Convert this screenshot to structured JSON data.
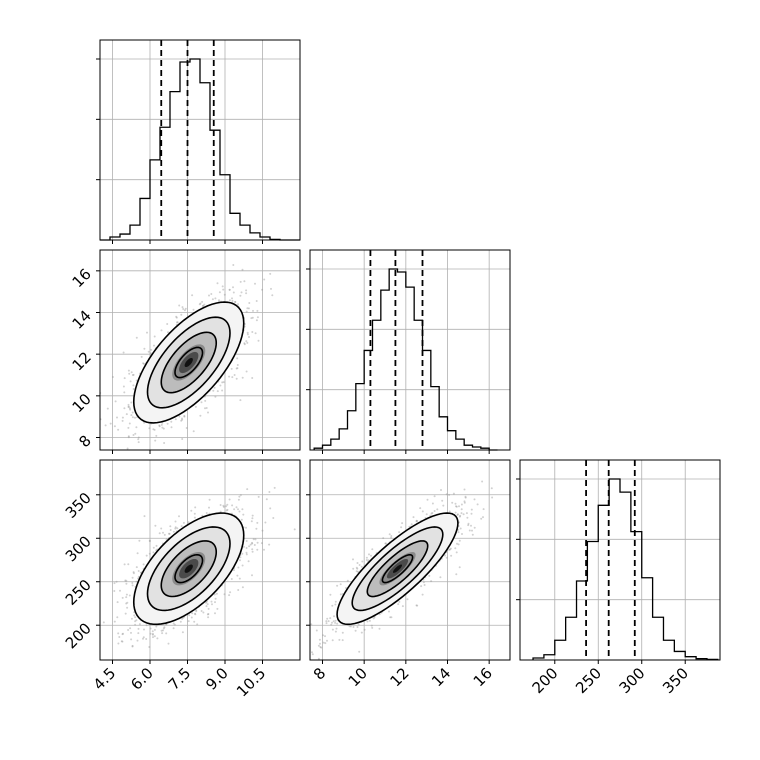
{
  "chart_data": {
    "type": "corner",
    "parameters": [
      {
        "range": [
          4.0,
          12.0
        ],
        "ticks": [
          4.5,
          6.0,
          7.5,
          9.0,
          10.5
        ],
        "tick_labels": [
          "4.5",
          "6.0",
          "7.5",
          "9.0",
          "10.5"
        ]
      },
      {
        "range": [
          7.4,
          17.0
        ],
        "ticks": [
          8,
          10,
          12,
          14,
          16
        ],
        "tick_labels": [
          "8",
          "10",
          "12",
          "14",
          "16"
        ]
      },
      {
        "range": [
          160,
          390
        ],
        "ticks": [
          200,
          250,
          300,
          350
        ],
        "tick_labels": [
          "200",
          "250",
          "300",
          "350"
        ]
      }
    ],
    "histograms": [
      {
        "param": 0,
        "bin_edges": [
          4.0,
          4.4,
          4.8,
          5.2,
          5.6,
          6.0,
          6.4,
          6.8,
          7.2,
          7.6,
          8.0,
          8.4,
          8.8,
          9.2,
          9.6,
          10.0,
          10.4,
          10.8,
          11.2,
          11.6,
          12.0
        ],
        "counts": [
          0,
          5,
          10,
          25,
          70,
          135,
          190,
          250,
          300,
          305,
          265,
          185,
          110,
          45,
          25,
          12,
          5,
          1,
          0,
          0
        ],
        "quantiles": [
          6.45,
          7.5,
          8.55
        ]
      },
      {
        "param": 1,
        "bin_edges": [
          7.6,
          8.0,
          8.4,
          8.8,
          9.2,
          9.6,
          10.0,
          10.4,
          10.8,
          11.2,
          11.6,
          12.0,
          12.4,
          12.8,
          13.2,
          13.6,
          14.0,
          14.4,
          14.8,
          15.2,
          15.6,
          16.0,
          16.4
        ],
        "counts": [
          3,
          8,
          18,
          35,
          65,
          110,
          165,
          215,
          265,
          300,
          295,
          270,
          215,
          165,
          105,
          55,
          32,
          18,
          8,
          5,
          3,
          0
        ],
        "quantiles": [
          10.3,
          11.5,
          12.8
        ]
      },
      {
        "param": 2,
        "bin_edges": [
          175,
          187.5,
          200,
          212.5,
          225,
          237.5,
          250,
          262.5,
          275,
          287.5,
          300,
          312.5,
          325,
          337.5,
          350,
          362.5,
          375,
          387.5
        ],
        "counts": [
          3,
          8,
          30,
          65,
          120,
          180,
          235,
          275,
          255,
          195,
          125,
          65,
          30,
          13,
          5,
          2,
          1
        ],
        "quantiles": [
          236,
          262,
          292
        ]
      }
    ],
    "pairs": [
      {
        "x_param": 0,
        "y_param": 1,
        "mean": [
          7.55,
          11.6
        ],
        "std": [
          1.1,
          1.45
        ],
        "corr": 0.65
      },
      {
        "x_param": 0,
        "y_param": 2,
        "mean": [
          7.55,
          265
        ],
        "std": [
          1.1,
          32
        ],
        "corr": 0.6
      },
      {
        "x_param": 1,
        "y_param": 2,
        "mean": [
          11.6,
          265
        ],
        "std": [
          1.45,
          32
        ],
        "corr": 0.82
      }
    ],
    "contour_levels_sigma": [
      0.5,
      1.0,
      1.5,
      2.0
    ],
    "grid": true,
    "colors": {
      "line": "#000000",
      "grid": "#b0b0b0",
      "points": "#9a9a9a"
    }
  }
}
